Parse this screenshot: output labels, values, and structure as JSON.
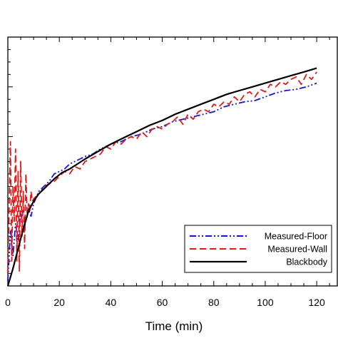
{
  "chart_data": {
    "type": "line",
    "xlabel": "Time (min)",
    "ylabel": "",
    "xlim": [
      0,
      128
    ],
    "ylim": [
      0,
      1
    ],
    "x_ticks": [
      "0",
      "20",
      "40",
      "60",
      "80",
      "100",
      "120"
    ],
    "grid": false,
    "legend_position": "lower-right",
    "series": [
      {
        "name": "Measured-Floor",
        "color": "#1515d4",
        "dash": "dash-dot-dot",
        "x": [
          0,
          1,
          2,
          3,
          4,
          5,
          6,
          7,
          8,
          9,
          10,
          12,
          14,
          16,
          18,
          20,
          22,
          24,
          26,
          28,
          30,
          33,
          36,
          40,
          44,
          48,
          52,
          56,
          60,
          64,
          68,
          72,
          76,
          80,
          84,
          88,
          92,
          96,
          100,
          104,
          108,
          112,
          116,
          120
        ],
        "y": [
          0.02,
          0.22,
          0.12,
          0.25,
          0.18,
          0.3,
          0.22,
          0.26,
          0.31,
          0.28,
          0.33,
          0.38,
          0.4,
          0.42,
          0.45,
          0.46,
          0.47,
          0.49,
          0.5,
          0.51,
          0.52,
          0.53,
          0.55,
          0.57,
          0.58,
          0.6,
          0.61,
          0.63,
          0.64,
          0.66,
          0.67,
          0.68,
          0.69,
          0.7,
          0.72,
          0.73,
          0.74,
          0.745,
          0.76,
          0.775,
          0.785,
          0.79,
          0.8,
          0.815
        ]
      },
      {
        "name": "Measured-Wall",
        "color": "#e01a1a",
        "dash": "dashed",
        "x": [
          0,
          1,
          1.5,
          2,
          2.5,
          3,
          3.5,
          4,
          4.5,
          5,
          5.5,
          6,
          6.5,
          7,
          7.5,
          8,
          8.5,
          9,
          9.5,
          10,
          11,
          12,
          13,
          14,
          16,
          18,
          20,
          22,
          24,
          26,
          28,
          30,
          32,
          34,
          36,
          38,
          40,
          42,
          44,
          46,
          48,
          50,
          52,
          54,
          56,
          58,
          60,
          62,
          64,
          66,
          68,
          70,
          72,
          74,
          76,
          78,
          80,
          82,
          84,
          86,
          88,
          90,
          92,
          94,
          96,
          98,
          100,
          102,
          104,
          106,
          108,
          110,
          112,
          114,
          116,
          118,
          120
        ],
        "y": [
          0.05,
          0.58,
          0.1,
          0.4,
          0.26,
          0.55,
          0.1,
          0.46,
          0.06,
          0.5,
          0.2,
          0.38,
          0.15,
          0.45,
          0.28,
          0.33,
          0.3,
          0.38,
          0.34,
          0.35,
          0.36,
          0.37,
          0.38,
          0.4,
          0.41,
          0.42,
          0.44,
          0.46,
          0.45,
          0.48,
          0.47,
          0.5,
          0.51,
          0.52,
          0.53,
          0.56,
          0.55,
          0.58,
          0.57,
          0.59,
          0.6,
          0.59,
          0.62,
          0.6,
          0.63,
          0.64,
          0.63,
          0.65,
          0.66,
          0.68,
          0.65,
          0.69,
          0.67,
          0.7,
          0.71,
          0.7,
          0.73,
          0.72,
          0.74,
          0.73,
          0.76,
          0.74,
          0.77,
          0.78,
          0.76,
          0.79,
          0.78,
          0.81,
          0.8,
          0.82,
          0.81,
          0.83,
          0.84,
          0.81,
          0.85,
          0.83,
          0.86
        ]
      },
      {
        "name": "Blackbody",
        "color": "#000000",
        "dash": "solid",
        "x": [
          0,
          2,
          4,
          6,
          8,
          10,
          12,
          15,
          18,
          21,
          24,
          27,
          30,
          35,
          40,
          45,
          50,
          55,
          60,
          65,
          70,
          75,
          80,
          85,
          90,
          95,
          100,
          105,
          110,
          115,
          120
        ],
        "y": [
          0.0,
          0.07,
          0.15,
          0.23,
          0.3,
          0.34,
          0.37,
          0.4,
          0.43,
          0.455,
          0.47,
          0.49,
          0.51,
          0.54,
          0.57,
          0.595,
          0.62,
          0.645,
          0.665,
          0.69,
          0.71,
          0.73,
          0.75,
          0.77,
          0.785,
          0.8,
          0.815,
          0.83,
          0.845,
          0.86,
          0.875
        ]
      }
    ]
  }
}
